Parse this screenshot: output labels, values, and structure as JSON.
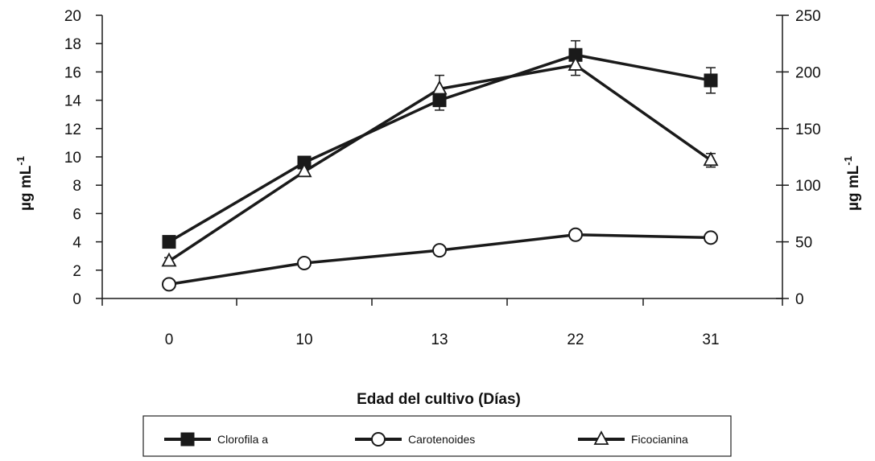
{
  "chart_data": {
    "type": "line",
    "categories": [
      "0",
      "10",
      "13",
      "22",
      "31"
    ],
    "xlabel": "Edad del cultivo (Días)",
    "ylabel_left": "µg mL",
    "ylabel_left_sup": "-1",
    "ylabel_right": "µg mL",
    "ylabel_right_sup": "-1",
    "ylim_left": [
      0,
      20
    ],
    "yticks_left": [
      0,
      2,
      4,
      6,
      8,
      10,
      12,
      14,
      16,
      18,
      20
    ],
    "ylim_right": [
      0,
      250
    ],
    "yticks_right": [
      0,
      50,
      100,
      150,
      200,
      250
    ],
    "grid": false,
    "legend_placement": "bottom",
    "series": [
      {
        "name": "Clorofila a",
        "axis": "left",
        "marker": "filled-square",
        "values": [
          4.0,
          9.6,
          14.0,
          17.2,
          15.4
        ],
        "errors": [
          0.2,
          0.4,
          0.7,
          1.0,
          0.9
        ]
      },
      {
        "name": "Carotenoides",
        "axis": "left",
        "marker": "open-circle",
        "values": [
          1.0,
          2.5,
          3.4,
          4.5,
          4.3
        ],
        "errors": [
          0.1,
          0.15,
          0.15,
          0.2,
          0.2
        ]
      },
      {
        "name": "Ficocianina",
        "axis": "right",
        "marker": "open-triangle",
        "values": [
          33,
          112,
          185,
          206,
          122
        ],
        "errors": [
          3,
          4,
          12,
          9,
          6
        ]
      }
    ]
  }
}
